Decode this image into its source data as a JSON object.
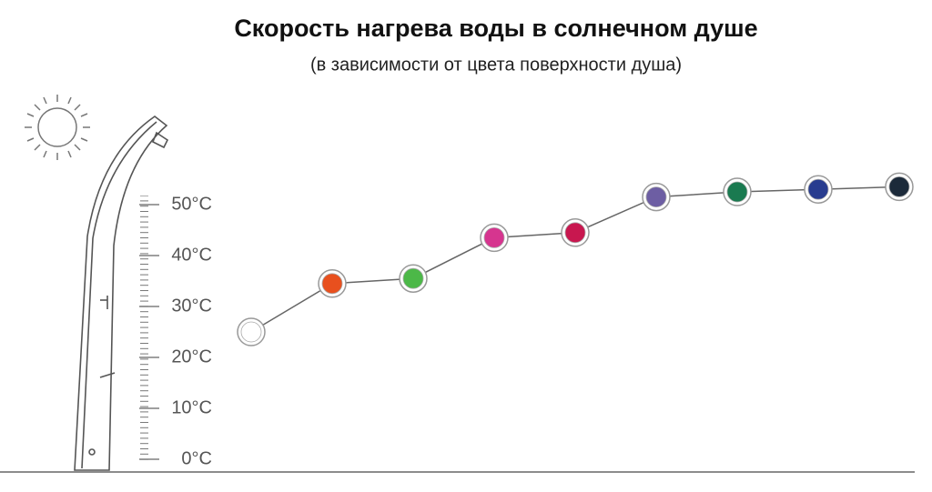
{
  "chart_data": {
    "type": "line",
    "title": "Скорость нагрева воды в солнечном душе",
    "subtitle": "(в зависимости от цвета поверхности душа)",
    "categories": [
      null,
      null,
      null,
      null,
      null,
      null,
      null,
      null,
      null
    ],
    "values": [
      25,
      34.5,
      35.5,
      43.5,
      44.5,
      51.5,
      52.5,
      53,
      53.5
    ],
    "colors": [
      "#ffffff",
      "#e8501e",
      "#4cb848",
      "#d6358f",
      "#c8174f",
      "#6d5ea3",
      "#1a7a50",
      "#283c8f",
      "#1c2a3a"
    ],
    "line_color": "#666666",
    "ylim": [
      0,
      55
    ],
    "yticks": [
      {
        "value": 0,
        "label": "0°C"
      },
      {
        "value": 10,
        "label": "10°C"
      },
      {
        "value": 20,
        "label": "20°C"
      },
      {
        "value": 30,
        "label": "30°C"
      },
      {
        "value": 40,
        "label": "40°C"
      },
      {
        "value": 50,
        "label": "50°C"
      }
    ]
  }
}
